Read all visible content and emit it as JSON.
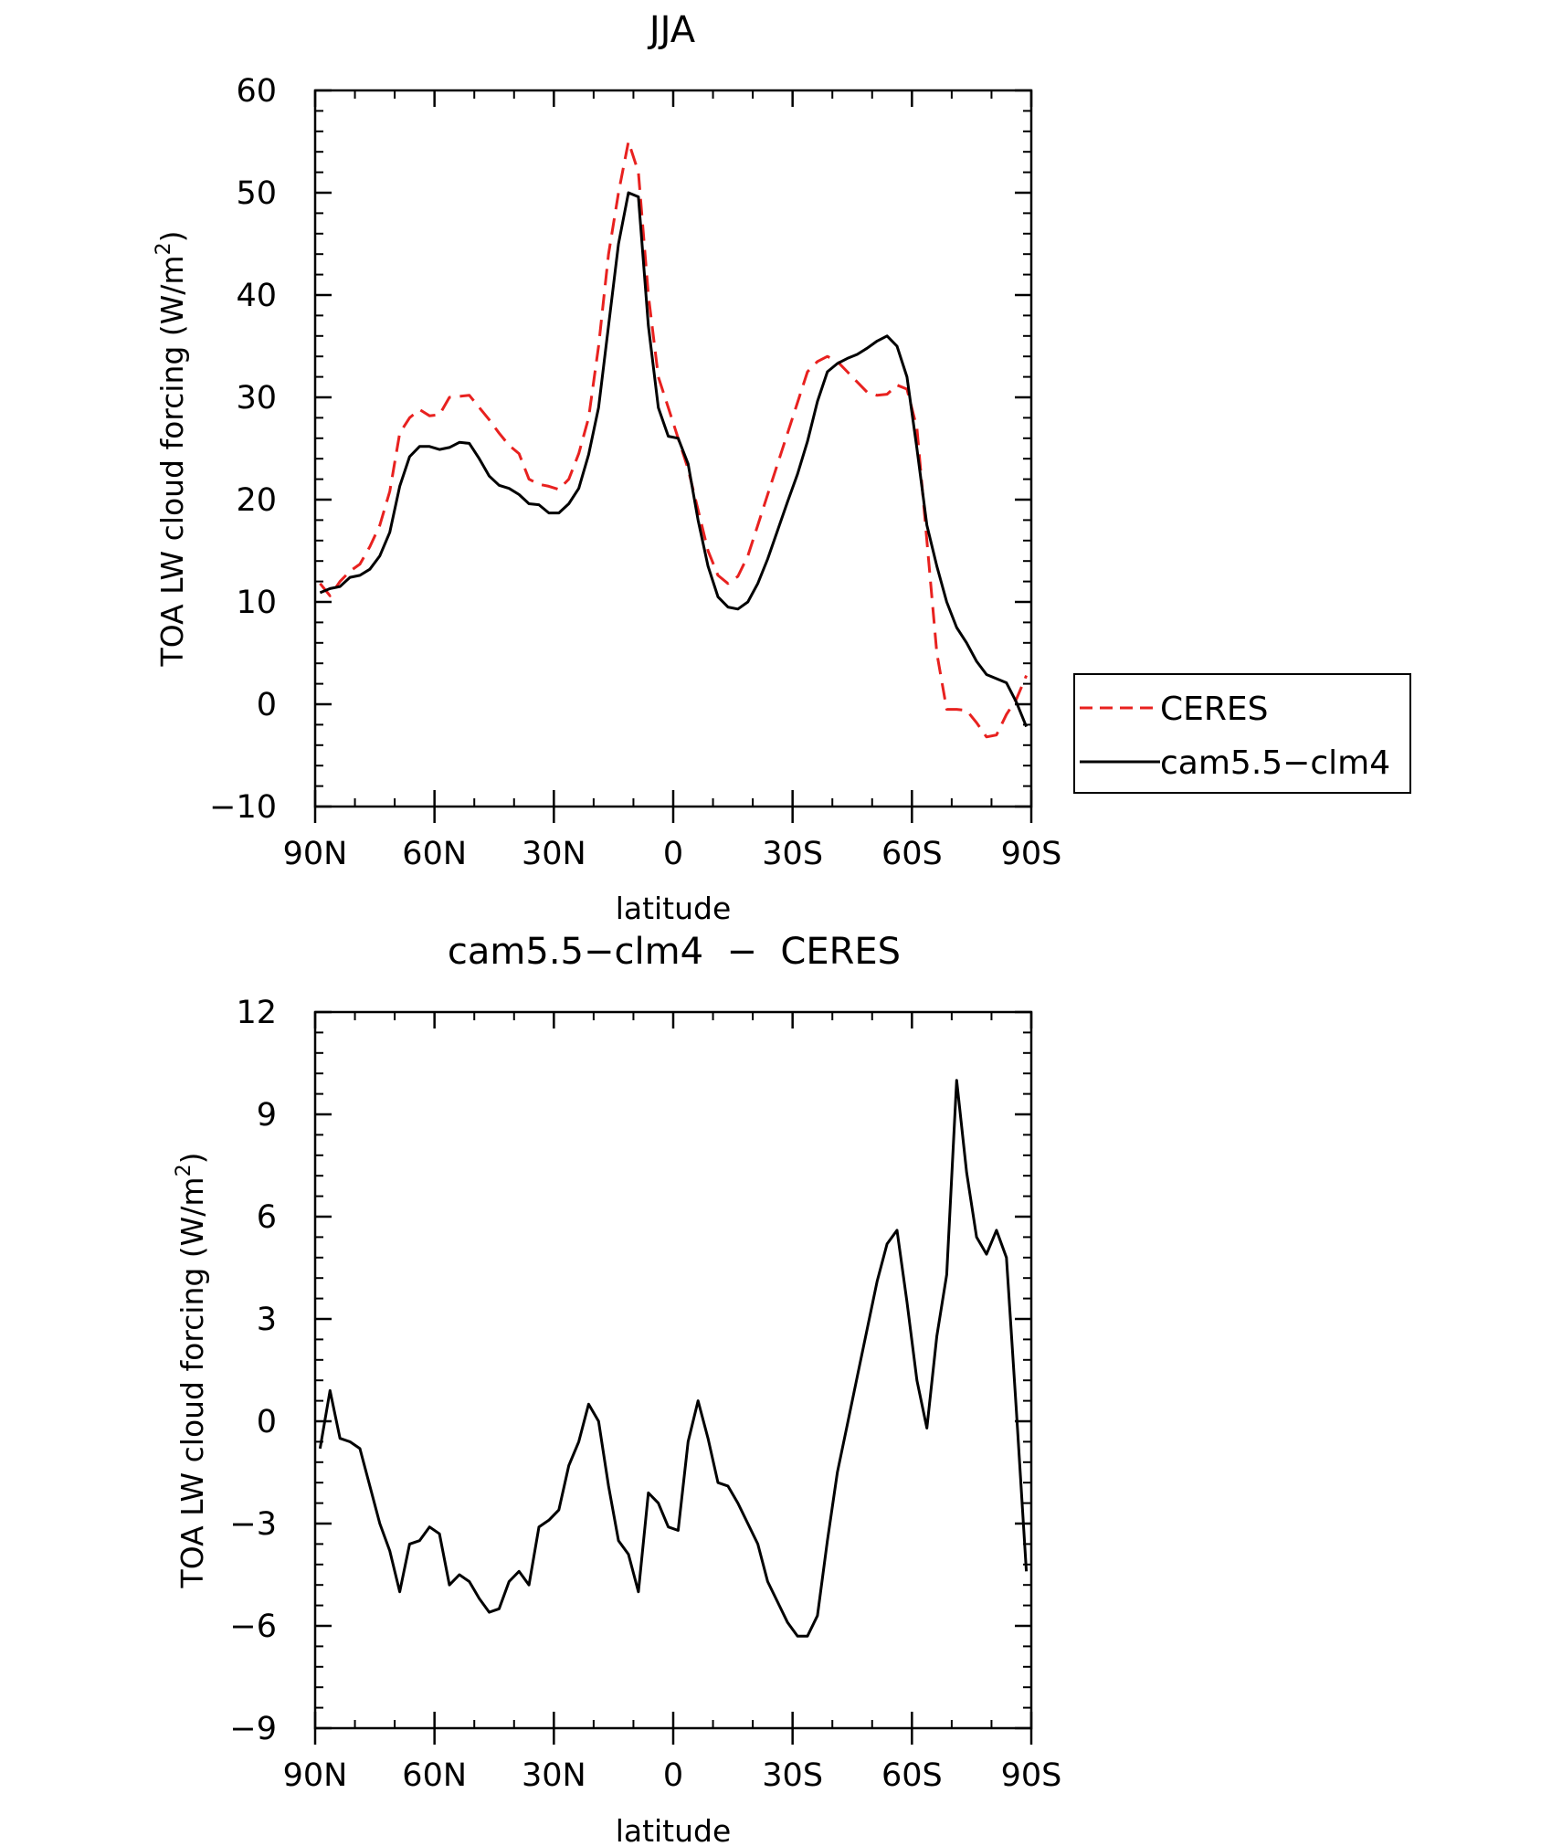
{
  "chart_data": [
    {
      "type": "line",
      "title": "JJA",
      "xlabel": "latitude",
      "ylabel": "TOA LW cloud forcing (W/m²)",
      "ylabel_main": "TOA LW cloud forcing (W/m",
      "ylabel_sup": "2",
      "ylabel_close": ")",
      "xlim": [
        90,
        -90
      ],
      "ylim": [
        -10,
        60
      ],
      "yticks": [
        -10,
        0,
        10,
        20,
        30,
        40,
        50,
        60
      ],
      "ytick_labels": [
        "−10",
        "0",
        "10",
        "20",
        "30",
        "40",
        "50",
        "60"
      ],
      "xtick_labels": [
        "90N",
        "60N",
        "30N",
        "0",
        "30S",
        "60S",
        "90S"
      ],
      "legend": "right",
      "series": [
        {
          "name": "CERES",
          "color": "#e8211f",
          "dash": "dashed",
          "x": [
            88.75,
            86.25,
            83.75,
            81.25,
            78.75,
            76.25,
            73.75,
            71.25,
            68.75,
            66.25,
            63.75,
            61.25,
            58.75,
            56.25,
            53.75,
            51.25,
            48.75,
            46.25,
            43.75,
            41.25,
            38.75,
            36.25,
            33.75,
            31.25,
            28.75,
            26.25,
            23.75,
            21.25,
            18.75,
            16.25,
            13.75,
            11.25,
            8.75,
            6.25,
            3.75,
            1.25,
            -1.25,
            -3.75,
            -6.25,
            -8.75,
            -11.25,
            -13.75,
            -16.25,
            -18.75,
            -21.25,
            -23.75,
            -26.25,
            -28.75,
            -31.25,
            -33.75,
            -36.25,
            -38.75,
            -41.25,
            -43.75,
            -46.25,
            -48.75,
            -51.25,
            -53.75,
            -56.25,
            -58.75,
            -61.25,
            -63.75,
            -66.25,
            -68.75,
            -71.25,
            -73.75,
            -76.25,
            -78.75,
            -81.25,
            -83.75,
            -86.25,
            -88.75
          ],
          "y": [
            11.8,
            10.6,
            12.0,
            13.0,
            13.7,
            15.4,
            17.5,
            20.8,
            26.5,
            28.0,
            28.8,
            28.2,
            28.3,
            30.0,
            30.1,
            30.2,
            29.0,
            27.8,
            26.5,
            25.3,
            24.5,
            22.0,
            21.5,
            21.3,
            21.0,
            22.0,
            24.5,
            28.0,
            35.0,
            44.0,
            50.0,
            55.0,
            52.0,
            40.0,
            32.0,
            29.0,
            26.0,
            23.0,
            19.0,
            15.0,
            12.6,
            11.8,
            12.5,
            14.5,
            17.5,
            20.5,
            23.5,
            26.5,
            29.5,
            32.5,
            33.5,
            34.0,
            33.5,
            32.5,
            31.5,
            30.5,
            30.2,
            30.3,
            31.2,
            30.8,
            27.0,
            16.0,
            5.0,
            -0.5,
            -0.5,
            -0.6,
            -1.8,
            -3.2,
            -3.0,
            -1.0,
            0.5,
            2.8
          ]
        },
        {
          "name": "cam5.5−clm4",
          "color": "#000000",
          "dash": "solid",
          "x": [
            88.75,
            86.25,
            83.75,
            81.25,
            78.75,
            76.25,
            73.75,
            71.25,
            68.75,
            66.25,
            63.75,
            61.25,
            58.75,
            56.25,
            53.75,
            51.25,
            48.75,
            46.25,
            43.75,
            41.25,
            38.75,
            36.25,
            33.75,
            31.25,
            28.75,
            26.25,
            23.75,
            21.25,
            18.75,
            16.25,
            13.75,
            11.25,
            8.75,
            6.25,
            3.75,
            1.25,
            -1.25,
            -3.75,
            -6.25,
            -8.75,
            -11.25,
            -13.75,
            -16.25,
            -18.75,
            -21.25,
            -23.75,
            -26.25,
            -28.75,
            -31.25,
            -33.75,
            -36.25,
            -38.75,
            -41.25,
            -43.75,
            -46.25,
            -48.75,
            -51.25,
            -53.75,
            -56.25,
            -58.75,
            -61.25,
            -63.75,
            -66.25,
            -68.75,
            -71.25,
            -73.75,
            -76.25,
            -78.75,
            -81.25,
            -83.75,
            -86.25,
            -88.75
          ],
          "y": [
            10.9,
            11.3,
            11.5,
            12.4,
            12.6,
            13.2,
            14.5,
            16.8,
            21.3,
            24.2,
            25.2,
            25.2,
            24.9,
            25.1,
            25.6,
            25.5,
            24.0,
            22.3,
            21.4,
            21.1,
            20.5,
            19.6,
            19.5,
            18.7,
            18.7,
            19.6,
            21.1,
            24.4,
            29.0,
            37.0,
            45.0,
            50.0,
            49.6,
            37.0,
            29.0,
            26.2,
            26.0,
            23.5,
            18.0,
            13.5,
            10.5,
            9.5,
            9.3,
            10.0,
            11.8,
            14.2,
            17.0,
            19.8,
            22.5,
            25.7,
            29.6,
            32.5,
            33.3,
            33.8,
            34.2,
            34.8,
            35.5,
            36.0,
            35.0,
            32.0,
            25.0,
            17.5,
            13.5,
            10.0,
            7.5,
            6.0,
            4.2,
            2.9,
            2.5,
            2.1,
            0.2,
            -2.2
          ]
        }
      ]
    },
    {
      "type": "line",
      "title": "cam5.5−clm4  −  CERES",
      "xlabel": "latitude",
      "ylabel": "TOA LW cloud forcing (W/m²)",
      "ylabel_main": "TOA LW cloud forcing (W/m",
      "ylabel_sup": "2",
      "ylabel_close": ")",
      "xlim": [
        90,
        -90
      ],
      "ylim": [
        -9,
        12
      ],
      "yticks": [
        -9,
        -6,
        -3,
        0,
        3,
        6,
        9,
        12
      ],
      "ytick_labels": [
        "−9",
        "−6",
        "−3",
        "0",
        "3",
        "6",
        "9",
        "12"
      ],
      "xtick_labels": [
        "90N",
        "60N",
        "30N",
        "0",
        "30S",
        "60S",
        "90S"
      ],
      "series": [
        {
          "color": "#000000",
          "dash": "solid",
          "x": [
            88.75,
            86.25,
            83.75,
            81.25,
            78.75,
            76.25,
            73.75,
            71.25,
            68.75,
            66.25,
            63.75,
            61.25,
            58.75,
            56.25,
            53.75,
            51.25,
            48.75,
            46.25,
            43.75,
            41.25,
            38.75,
            36.25,
            33.75,
            31.25,
            28.75,
            26.25,
            23.75,
            21.25,
            18.75,
            16.25,
            13.75,
            11.25,
            8.75,
            6.25,
            3.75,
            1.25,
            -1.25,
            -3.75,
            -6.25,
            -8.75,
            -11.25,
            -13.75,
            -16.25,
            -18.75,
            -21.25,
            -23.75,
            -26.25,
            -28.75,
            -31.25,
            -33.75,
            -36.25,
            -38.75,
            -41.25,
            -43.75,
            -46.25,
            -48.75,
            -51.25,
            -53.75,
            -56.25,
            -58.75,
            -61.25,
            -63.75,
            -66.25,
            -68.75,
            -71.25,
            -73.75,
            -76.25,
            -78.75,
            -81.25,
            -83.75,
            -86.25,
            -88.75
          ],
          "y": [
            -0.8,
            0.9,
            -0.5,
            -0.6,
            -0.8,
            -1.9,
            -3.0,
            -3.8,
            -5.0,
            -3.6,
            -3.5,
            -3.1,
            -3.3,
            -4.8,
            -4.5,
            -4.7,
            -5.2,
            -5.6,
            -5.5,
            -4.7,
            -4.4,
            -4.8,
            -3.1,
            -2.9,
            -2.6,
            -1.3,
            -0.6,
            0.5,
            0.0,
            -1.9,
            -3.5,
            -3.9,
            -5.0,
            -2.1,
            -2.4,
            -3.1,
            -3.2,
            -0.6,
            0.6,
            -0.5,
            -1.8,
            -1.9,
            -2.4,
            -3.0,
            -3.6,
            -4.7,
            -5.3,
            -5.9,
            -6.3,
            -6.3,
            -5.7,
            -3.5,
            -1.5,
            -0.1,
            1.3,
            2.7,
            4.1,
            5.2,
            5.6,
            3.5,
            1.2,
            -0.2,
            2.5,
            4.3,
            10.0,
            7.3,
            5.4,
            4.9,
            5.6,
            4.8,
            0.3,
            -4.4
          ]
        }
      ]
    }
  ]
}
